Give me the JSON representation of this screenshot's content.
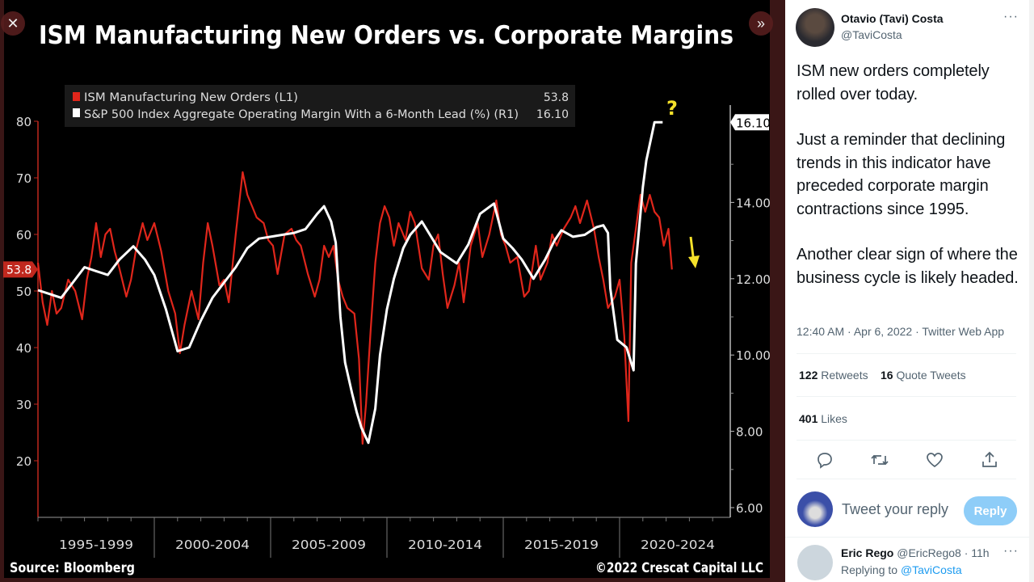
{
  "viewer": {
    "close_icon": "close-icon",
    "next_icon": "double-chevron-right-icon"
  },
  "chart": {
    "title": "ISM Manufacturing New Orders vs. Corporate Margins",
    "legend": [
      {
        "label": "ISM Manufacturing New Orders (L1)",
        "value": "53.8",
        "color": "#e0261b"
      },
      {
        "label": "S&P 500 Index Aggregate Operating Margin With a 6-Month Lead (%) (R1)",
        "value": "16.10",
        "color": "#ffffff"
      }
    ],
    "left_ticks": [
      "20",
      "30",
      "40",
      "50",
      "60",
      "70",
      "80"
    ],
    "right_ticks": [
      "6.00",
      "8.00",
      "10.00",
      "12.00",
      "14.00"
    ],
    "left_last_tag": "53.8",
    "right_last_tag": "16.10",
    "x_labels": [
      "1995-1999",
      "2000-2004",
      "2005-2009",
      "2010-2014",
      "2015-2019",
      "2020-2024"
    ],
    "source": "Source: Bloomberg",
    "copyright": "©2022 Crescat Capital LLC",
    "annotation_question": "?",
    "annotation_arrow": "down-arrow",
    "annotation_color": "#f5e12a"
  },
  "chart_data": {
    "type": "line",
    "title": "ISM Manufacturing New Orders vs. Corporate Margins",
    "x_range": [
      1995,
      2024.75
    ],
    "y_left_range": [
      10,
      85
    ],
    "y_right_range": [
      5.8,
      17.5
    ],
    "grid": false,
    "legend_placement": "top-left",
    "series": [
      {
        "name": "ISM Manufacturing New Orders (L1)",
        "axis": "left",
        "color": "#e0261b",
        "points": [
          [
            1995.0,
            55
          ],
          [
            1995.2,
            48
          ],
          [
            1995.4,
            44
          ],
          [
            1995.6,
            50
          ],
          [
            1995.8,
            46
          ],
          [
            1996.0,
            47
          ],
          [
            1996.3,
            52
          ],
          [
            1996.6,
            50
          ],
          [
            1996.9,
            45
          ],
          [
            1997.1,
            52
          ],
          [
            1997.3,
            56
          ],
          [
            1997.5,
            62
          ],
          [
            1997.7,
            56
          ],
          [
            1997.9,
            60
          ],
          [
            1998.1,
            61
          ],
          [
            1998.3,
            57
          ],
          [
            1998.5,
            54
          ],
          [
            1998.8,
            49
          ],
          [
            1999.0,
            52
          ],
          [
            1999.2,
            57
          ],
          [
            1999.5,
            62
          ],
          [
            1999.7,
            59
          ],
          [
            2000.0,
            62
          ],
          [
            2000.3,
            57
          ],
          [
            2000.6,
            50
          ],
          [
            2000.9,
            46
          ],
          [
            2001.1,
            39
          ],
          [
            2001.3,
            44
          ],
          [
            2001.6,
            50
          ],
          [
            2001.9,
            45
          ],
          [
            2002.1,
            55
          ],
          [
            2002.3,
            62
          ],
          [
            2002.5,
            58
          ],
          [
            2002.8,
            51
          ],
          [
            2003.0,
            52
          ],
          [
            2003.2,
            48
          ],
          [
            2003.5,
            60
          ],
          [
            2003.8,
            71
          ],
          [
            2004.0,
            67
          ],
          [
            2004.2,
            65
          ],
          [
            2004.4,
            63
          ],
          [
            2004.7,
            62
          ],
          [
            2004.9,
            59
          ],
          [
            2005.1,
            58
          ],
          [
            2005.3,
            53
          ],
          [
            2005.6,
            60
          ],
          [
            2005.9,
            61
          ],
          [
            2006.1,
            59
          ],
          [
            2006.3,
            58
          ],
          [
            2006.6,
            53
          ],
          [
            2006.9,
            49
          ],
          [
            2007.1,
            52
          ],
          [
            2007.3,
            58
          ],
          [
            2007.5,
            56
          ],
          [
            2007.7,
            58
          ],
          [
            2007.9,
            52
          ],
          [
            2008.1,
            49
          ],
          [
            2008.3,
            47
          ],
          [
            2008.6,
            46
          ],
          [
            2008.8,
            38
          ],
          [
            2008.95,
            23
          ],
          [
            2009.1,
            30
          ],
          [
            2009.3,
            43
          ],
          [
            2009.5,
            55
          ],
          [
            2009.7,
            62
          ],
          [
            2009.9,
            65
          ],
          [
            2010.1,
            63
          ],
          [
            2010.3,
            58
          ],
          [
            2010.5,
            62
          ],
          [
            2010.8,
            59
          ],
          [
            2011.0,
            64
          ],
          [
            2011.2,
            62
          ],
          [
            2011.5,
            54
          ],
          [
            2011.8,
            52
          ],
          [
            2012.0,
            58
          ],
          [
            2012.2,
            60
          ],
          [
            2012.4,
            53
          ],
          [
            2012.6,
            47
          ],
          [
            2012.9,
            51
          ],
          [
            2013.1,
            55
          ],
          [
            2013.3,
            48
          ],
          [
            2013.6,
            58
          ],
          [
            2013.9,
            62
          ],
          [
            2014.1,
            56
          ],
          [
            2014.4,
            60
          ],
          [
            2014.7,
            66
          ],
          [
            2014.9,
            60
          ],
          [
            2015.1,
            58
          ],
          [
            2015.3,
            55
          ],
          [
            2015.6,
            56
          ],
          [
            2015.9,
            49
          ],
          [
            2016.1,
            50
          ],
          [
            2016.4,
            58
          ],
          [
            2016.6,
            52
          ],
          [
            2016.9,
            55
          ],
          [
            2017.1,
            60
          ],
          [
            2017.3,
            58
          ],
          [
            2017.6,
            61
          ],
          [
            2017.9,
            63
          ],
          [
            2018.1,
            65
          ],
          [
            2018.3,
            62
          ],
          [
            2018.6,
            66
          ],
          [
            2018.9,
            61
          ],
          [
            2019.1,
            56
          ],
          [
            2019.3,
            52
          ],
          [
            2019.5,
            47
          ],
          [
            2019.8,
            49
          ],
          [
            2020.0,
            52
          ],
          [
            2020.2,
            42
          ],
          [
            2020.38,
            27
          ],
          [
            2020.5,
            55
          ],
          [
            2020.7,
            61
          ],
          [
            2020.9,
            67
          ],
          [
            2021.1,
            64
          ],
          [
            2021.3,
            67
          ],
          [
            2021.5,
            64
          ],
          [
            2021.7,
            63
          ],
          [
            2021.9,
            58
          ],
          [
            2022.1,
            61
          ],
          [
            2022.25,
            53.8
          ]
        ]
      },
      {
        "name": "S&P 500 Index Aggregate Operating Margin With a 6-Month Lead (%) (R1)",
        "axis": "right",
        "color": "#ffffff",
        "points": [
          [
            1995.0,
            11.7
          ],
          [
            1995.5,
            11.6
          ],
          [
            1996.0,
            11.5
          ],
          [
            1996.5,
            11.9
          ],
          [
            1997.0,
            12.3
          ],
          [
            1997.5,
            12.2
          ],
          [
            1998.0,
            12.1
          ],
          [
            1998.5,
            12.5
          ],
          [
            1999.1,
            12.85
          ],
          [
            1999.6,
            12.5
          ],
          [
            2000.0,
            12.1
          ],
          [
            2000.5,
            11.2
          ],
          [
            2001.0,
            10.1
          ],
          [
            2001.5,
            10.2
          ],
          [
            2002.0,
            10.9
          ],
          [
            2002.5,
            11.5
          ],
          [
            2003.0,
            11.9
          ],
          [
            2003.5,
            12.3
          ],
          [
            2004.0,
            12.8
          ],
          [
            2004.5,
            13.05
          ],
          [
            2005.0,
            13.1
          ],
          [
            2005.5,
            13.15
          ],
          [
            2006.0,
            13.2
          ],
          [
            2006.5,
            13.3
          ],
          [
            2007.0,
            13.7
          ],
          [
            2007.3,
            13.9
          ],
          [
            2007.6,
            13.5
          ],
          [
            2007.8,
            12.95
          ],
          [
            2008.0,
            11.0
          ],
          [
            2008.2,
            9.8
          ],
          [
            2008.5,
            9.0
          ],
          [
            2008.7,
            8.5
          ],
          [
            2008.9,
            8.1
          ],
          [
            2009.2,
            7.7
          ],
          [
            2009.5,
            8.6
          ],
          [
            2009.7,
            10.0
          ],
          [
            2010.0,
            11.2
          ],
          [
            2010.3,
            12.0
          ],
          [
            2010.7,
            12.8
          ],
          [
            2011.0,
            13.15
          ],
          [
            2011.5,
            13.5
          ],
          [
            2012.0,
            13.0
          ],
          [
            2012.3,
            12.7
          ],
          [
            2013.0,
            12.4
          ],
          [
            2013.5,
            12.9
          ],
          [
            2014.0,
            13.7
          ],
          [
            2014.6,
            13.97
          ],
          [
            2015.0,
            13.05
          ],
          [
            2015.4,
            12.8
          ],
          [
            2015.8,
            12.5
          ],
          [
            2016.3,
            12.0
          ],
          [
            2016.8,
            12.5
          ],
          [
            2017.2,
            13.0
          ],
          [
            2017.5,
            13.27
          ],
          [
            2018.0,
            13.1
          ],
          [
            2018.5,
            13.15
          ],
          [
            2019.0,
            13.35
          ],
          [
            2019.3,
            13.4
          ],
          [
            2019.5,
            13.2
          ],
          [
            2019.6,
            11.75
          ],
          [
            2019.9,
            10.4
          ],
          [
            2020.3,
            10.2
          ],
          [
            2020.6,
            9.6
          ],
          [
            2020.7,
            12.4
          ],
          [
            2021.0,
            14.4
          ],
          [
            2021.15,
            15.1
          ],
          [
            2021.5,
            16.1
          ],
          [
            2021.85,
            16.1
          ]
        ]
      }
    ]
  },
  "tweet": {
    "author_name": "Otavio (Tavi) Costa",
    "author_handle": "@TaviCosta",
    "more_icon": "more-icon",
    "paragraphs": [
      "ISM new orders completely rolled over today.",
      "Just a reminder that declining trends in this indicator have preceded corporate margin contractions since 1995.",
      "Another clear sign of where the business cycle is likely headed."
    ],
    "meta": "12:40 AM · Apr 6, 2022 · Twitter Web App",
    "retweets_count": "122",
    "retweets_label": "Retweets",
    "quotes_count": "16",
    "quotes_label": "Quote Tweets",
    "likes_count": "401",
    "likes_label": "Likes",
    "actions": [
      "reply-icon",
      "retweet-icon",
      "like-icon",
      "share-icon"
    ],
    "reply_placeholder": "Tweet your reply",
    "reply_button": "Reply",
    "accent": "#1d9bf0"
  },
  "reply": {
    "author_name": "Eric Rego",
    "author_handle": "@EricRego8",
    "time": "· 11h",
    "replying_to": "Replying to",
    "replying_handle": "@TaviCosta"
  }
}
